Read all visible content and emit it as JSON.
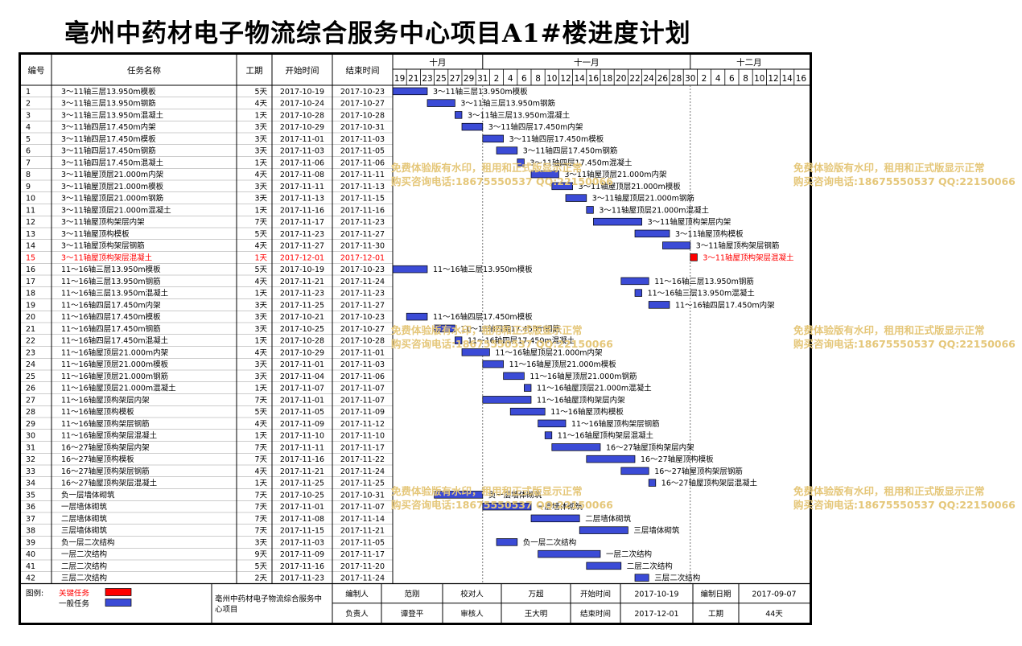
{
  "page_title": "亳州中药材电子物流综合服务中心项目A1#楼进度计划",
  "headers": {
    "id": "编号",
    "name": "任务名称",
    "duration": "工期",
    "start": "开始时间",
    "end": "结束时间"
  },
  "months": [
    {
      "label": "十月",
      "from": "2017-10-19",
      "to": "2017-11-01"
    },
    {
      "label": "十一月",
      "from": "2017-11-01",
      "to": "2017-12-01"
    },
    {
      "label": "十二月",
      "from": "2017-12-01",
      "to": "2017-12-18"
    }
  ],
  "day_ticks": [
    "19",
    "21",
    "23",
    "25",
    "27",
    "29",
    "31",
    "2",
    "4",
    "6",
    "8",
    "10",
    "12",
    "14",
    "16",
    "18",
    "20",
    "22",
    "24",
    "26",
    "28",
    "30",
    "2",
    "4",
    "6",
    "8",
    "10",
    "12",
    "14",
    "16"
  ],
  "chart_data": {
    "type": "gantt",
    "timeline": {
      "start": "2017-10-19",
      "end": "2017-12-18"
    },
    "tasks": [
      {
        "id": "1",
        "name": "3～11轴三层13.950m模板",
        "duration": "5天",
        "start": "2017-10-19",
        "end": "2017-10-23",
        "critical": false
      },
      {
        "id": "2",
        "name": "3～11轴三层13.950m钢筋",
        "duration": "4天",
        "start": "2017-10-24",
        "end": "2017-10-27",
        "critical": false
      },
      {
        "id": "3",
        "name": "3～11轴三层13.950m混凝土",
        "duration": "1天",
        "start": "2017-10-28",
        "end": "2017-10-28",
        "critical": false
      },
      {
        "id": "4",
        "name": "3～11轴四层17.450m内架",
        "duration": "3天",
        "start": "2017-10-29",
        "end": "2017-10-31",
        "critical": false
      },
      {
        "id": "5",
        "name": "3～11轴四层17.450m模板",
        "duration": "3天",
        "start": "2017-11-01",
        "end": "2017-11-03",
        "critical": false
      },
      {
        "id": "6",
        "name": "3～11轴四层17.450m钢筋",
        "duration": "3天",
        "start": "2017-11-03",
        "end": "2017-11-05",
        "critical": false
      },
      {
        "id": "7",
        "name": "3～11轴四层17.450m混凝土",
        "duration": "1天",
        "start": "2017-11-06",
        "end": "2017-11-06",
        "critical": false
      },
      {
        "id": "8",
        "name": "3～11轴屋顶层21.000m内架",
        "duration": "4天",
        "start": "2017-11-08",
        "end": "2017-11-11",
        "critical": false
      },
      {
        "id": "9",
        "name": "3～11轴屋顶层21.000m模板",
        "duration": "3天",
        "start": "2017-11-11",
        "end": "2017-11-13",
        "critical": false
      },
      {
        "id": "10",
        "name": "3～11轴屋顶层21.000m钢筋",
        "duration": "3天",
        "start": "2017-11-13",
        "end": "2017-11-15",
        "critical": false
      },
      {
        "id": "11",
        "name": "3～11轴屋顶层21.000m混凝土",
        "duration": "1天",
        "start": "2017-11-16",
        "end": "2017-11-16",
        "critical": false
      },
      {
        "id": "12",
        "name": "3～11轴屋顶构架层内架",
        "duration": "7天",
        "start": "2017-11-17",
        "end": "2017-11-23",
        "critical": false
      },
      {
        "id": "13",
        "name": "3～11轴屋顶构模板",
        "duration": "5天",
        "start": "2017-11-23",
        "end": "2017-11-27",
        "critical": false
      },
      {
        "id": "14",
        "name": "3～11轴屋顶构架层钢筋",
        "duration": "4天",
        "start": "2017-11-27",
        "end": "2017-11-30",
        "critical": false
      },
      {
        "id": "15",
        "name": "3～11轴屋顶构架层混凝土",
        "duration": "1天",
        "start": "2017-12-01",
        "end": "2017-12-01",
        "critical": true
      },
      {
        "id": "16",
        "name": "11～16轴三层13.950m模板",
        "duration": "5天",
        "start": "2017-10-19",
        "end": "2017-10-23",
        "critical": false
      },
      {
        "id": "17",
        "name": "11～16轴三层13.950m钢筋",
        "duration": "4天",
        "start": "2017-11-21",
        "end": "2017-11-24",
        "critical": false
      },
      {
        "id": "18",
        "name": "11～16轴三层13.950m混凝土",
        "duration": "1天",
        "start": "2017-11-23",
        "end": "2017-11-23",
        "critical": false
      },
      {
        "id": "19",
        "name": "11～16轴四层17.450m内架",
        "duration": "3天",
        "start": "2017-11-25",
        "end": "2017-11-27",
        "critical": false
      },
      {
        "id": "20",
        "name": "11～16轴四层17.450m模板",
        "duration": "3天",
        "start": "2017-10-21",
        "end": "2017-10-23",
        "critical": false
      },
      {
        "id": "21",
        "name": "11～16轴四层17.450m钢筋",
        "duration": "3天",
        "start": "2017-10-25",
        "end": "2017-10-27",
        "critical": false
      },
      {
        "id": "22",
        "name": "11～16轴四层17.450m混凝土",
        "duration": "1天",
        "start": "2017-10-28",
        "end": "2017-10-28",
        "critical": false
      },
      {
        "id": "23",
        "name": "11～16轴屋顶层21.000m内架",
        "duration": "4天",
        "start": "2017-10-29",
        "end": "2017-11-01",
        "critical": false
      },
      {
        "id": "24",
        "name": "11～16轴屋顶层21.000m模板",
        "duration": "3天",
        "start": "2017-11-01",
        "end": "2017-11-03",
        "critical": false
      },
      {
        "id": "25",
        "name": "11～16轴屋顶层21.000m钢筋",
        "duration": "3天",
        "start": "2017-11-04",
        "end": "2017-11-06",
        "critical": false
      },
      {
        "id": "26",
        "name": "11～16轴屋顶层21.000m混凝土",
        "duration": "1天",
        "start": "2017-11-07",
        "end": "2017-11-07",
        "critical": false
      },
      {
        "id": "27",
        "name": "11～16轴屋顶构架层内架",
        "duration": "7天",
        "start": "2017-11-01",
        "end": "2017-11-07",
        "critical": false
      },
      {
        "id": "28",
        "name": "11～16轴屋顶构模板",
        "duration": "5天",
        "start": "2017-11-05",
        "end": "2017-11-09",
        "critical": false
      },
      {
        "id": "29",
        "name": "11～16轴屋顶构架层钢筋",
        "duration": "4天",
        "start": "2017-11-09",
        "end": "2017-11-12",
        "critical": false
      },
      {
        "id": "30",
        "name": "11～16轴屋顶构架层混凝土",
        "duration": "1天",
        "start": "2017-11-10",
        "end": "2017-11-10",
        "critical": false
      },
      {
        "id": "31",
        "name": "16～27轴屋顶构架层内架",
        "duration": "7天",
        "start": "2017-11-11",
        "end": "2017-11-17",
        "critical": false
      },
      {
        "id": "32",
        "name": "16～27轴屋顶构模板",
        "duration": "7天",
        "start": "2017-11-16",
        "end": "2017-11-22",
        "critical": false
      },
      {
        "id": "33",
        "name": "16～27轴屋顶构架层钢筋",
        "duration": "4天",
        "start": "2017-11-21",
        "end": "2017-11-24",
        "critical": false
      },
      {
        "id": "34",
        "name": "16～27轴屋顶构架层混凝土",
        "duration": "1天",
        "start": "2017-11-25",
        "end": "2017-11-25",
        "critical": false
      },
      {
        "id": "35",
        "name": "负一层墙体砌筑",
        "duration": "7天",
        "start": "2017-10-25",
        "end": "2017-10-31",
        "critical": false
      },
      {
        "id": "36",
        "name": "一层墙体砌筑",
        "duration": "7天",
        "start": "2017-11-01",
        "end": "2017-11-07",
        "critical": false
      },
      {
        "id": "37",
        "name": "二层墙体砌筑",
        "duration": "7天",
        "start": "2017-11-08",
        "end": "2017-11-14",
        "critical": false
      },
      {
        "id": "38",
        "name": "三层墙体砌筑",
        "duration": "7天",
        "start": "2017-11-15",
        "end": "2017-11-21",
        "critical": false
      },
      {
        "id": "39",
        "name": "负一层二次结构",
        "duration": "3天",
        "start": "2017-11-03",
        "end": "2017-11-05",
        "critical": false
      },
      {
        "id": "40",
        "name": "一层二次结构",
        "duration": "9天",
        "start": "2017-11-09",
        "end": "2017-11-17",
        "critical": false
      },
      {
        "id": "41",
        "name": "二层二次结构",
        "duration": "5天",
        "start": "2017-11-16",
        "end": "2017-11-20",
        "critical": false
      },
      {
        "id": "42",
        "name": "三层二次结构",
        "duration": "2天",
        "start": "2017-11-23",
        "end": "2017-11-24",
        "critical": false
      }
    ]
  },
  "legend": {
    "title": "图例:",
    "critical": "关键任务",
    "normal": "一般任务"
  },
  "colors": {
    "normal_fill": "#3b4bd6",
    "critical_fill": "#ff0000",
    "critical_text": "#ff0000"
  },
  "footer": {
    "project": "亳州中药材电子物流综合服务中心项目",
    "rows": [
      [
        "编制人",
        "范刚",
        "校对人",
        "万超",
        "开始时间",
        "2017-10-19",
        "编制日期",
        "2017-09-07"
      ],
      [
        "负责人",
        "谭登平",
        "审核人",
        "王大明",
        "结束时间",
        "2017-12-01",
        "工期",
        "44天"
      ]
    ]
  },
  "watermark": {
    "line1": "免费体验版有水印，租用和正式版显示正常",
    "line2": "购买咨询电话:18675550537 QQ:22150066"
  }
}
